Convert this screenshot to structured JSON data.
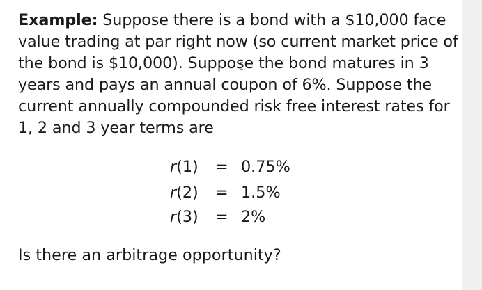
{
  "example": {
    "label": "Example:",
    "lines": [
      " Suppose there is a bond with a $10,000 face",
      "value trading at par right now (so current market price of",
      "the bond is $10,000). Suppose the bond matures in 3",
      "years and pays an annual coupon of 6%. Suppose the",
      "current annually compounded risk free interest rates for",
      "1, 2 and 3 year terms are"
    ]
  },
  "rates": [
    {
      "fn": "r",
      "term": "(1)",
      "relation": "=",
      "value": "0.75%"
    },
    {
      "fn": "r",
      "term": "(2)",
      "relation": "=",
      "value": "1.5%"
    },
    {
      "fn": "r",
      "term": "(3)",
      "relation": "=",
      "value": "2%"
    }
  ],
  "question": "Is there an arbitrage opportunity?",
  "icons": {
    "cursor": "text-cursor-icon"
  }
}
